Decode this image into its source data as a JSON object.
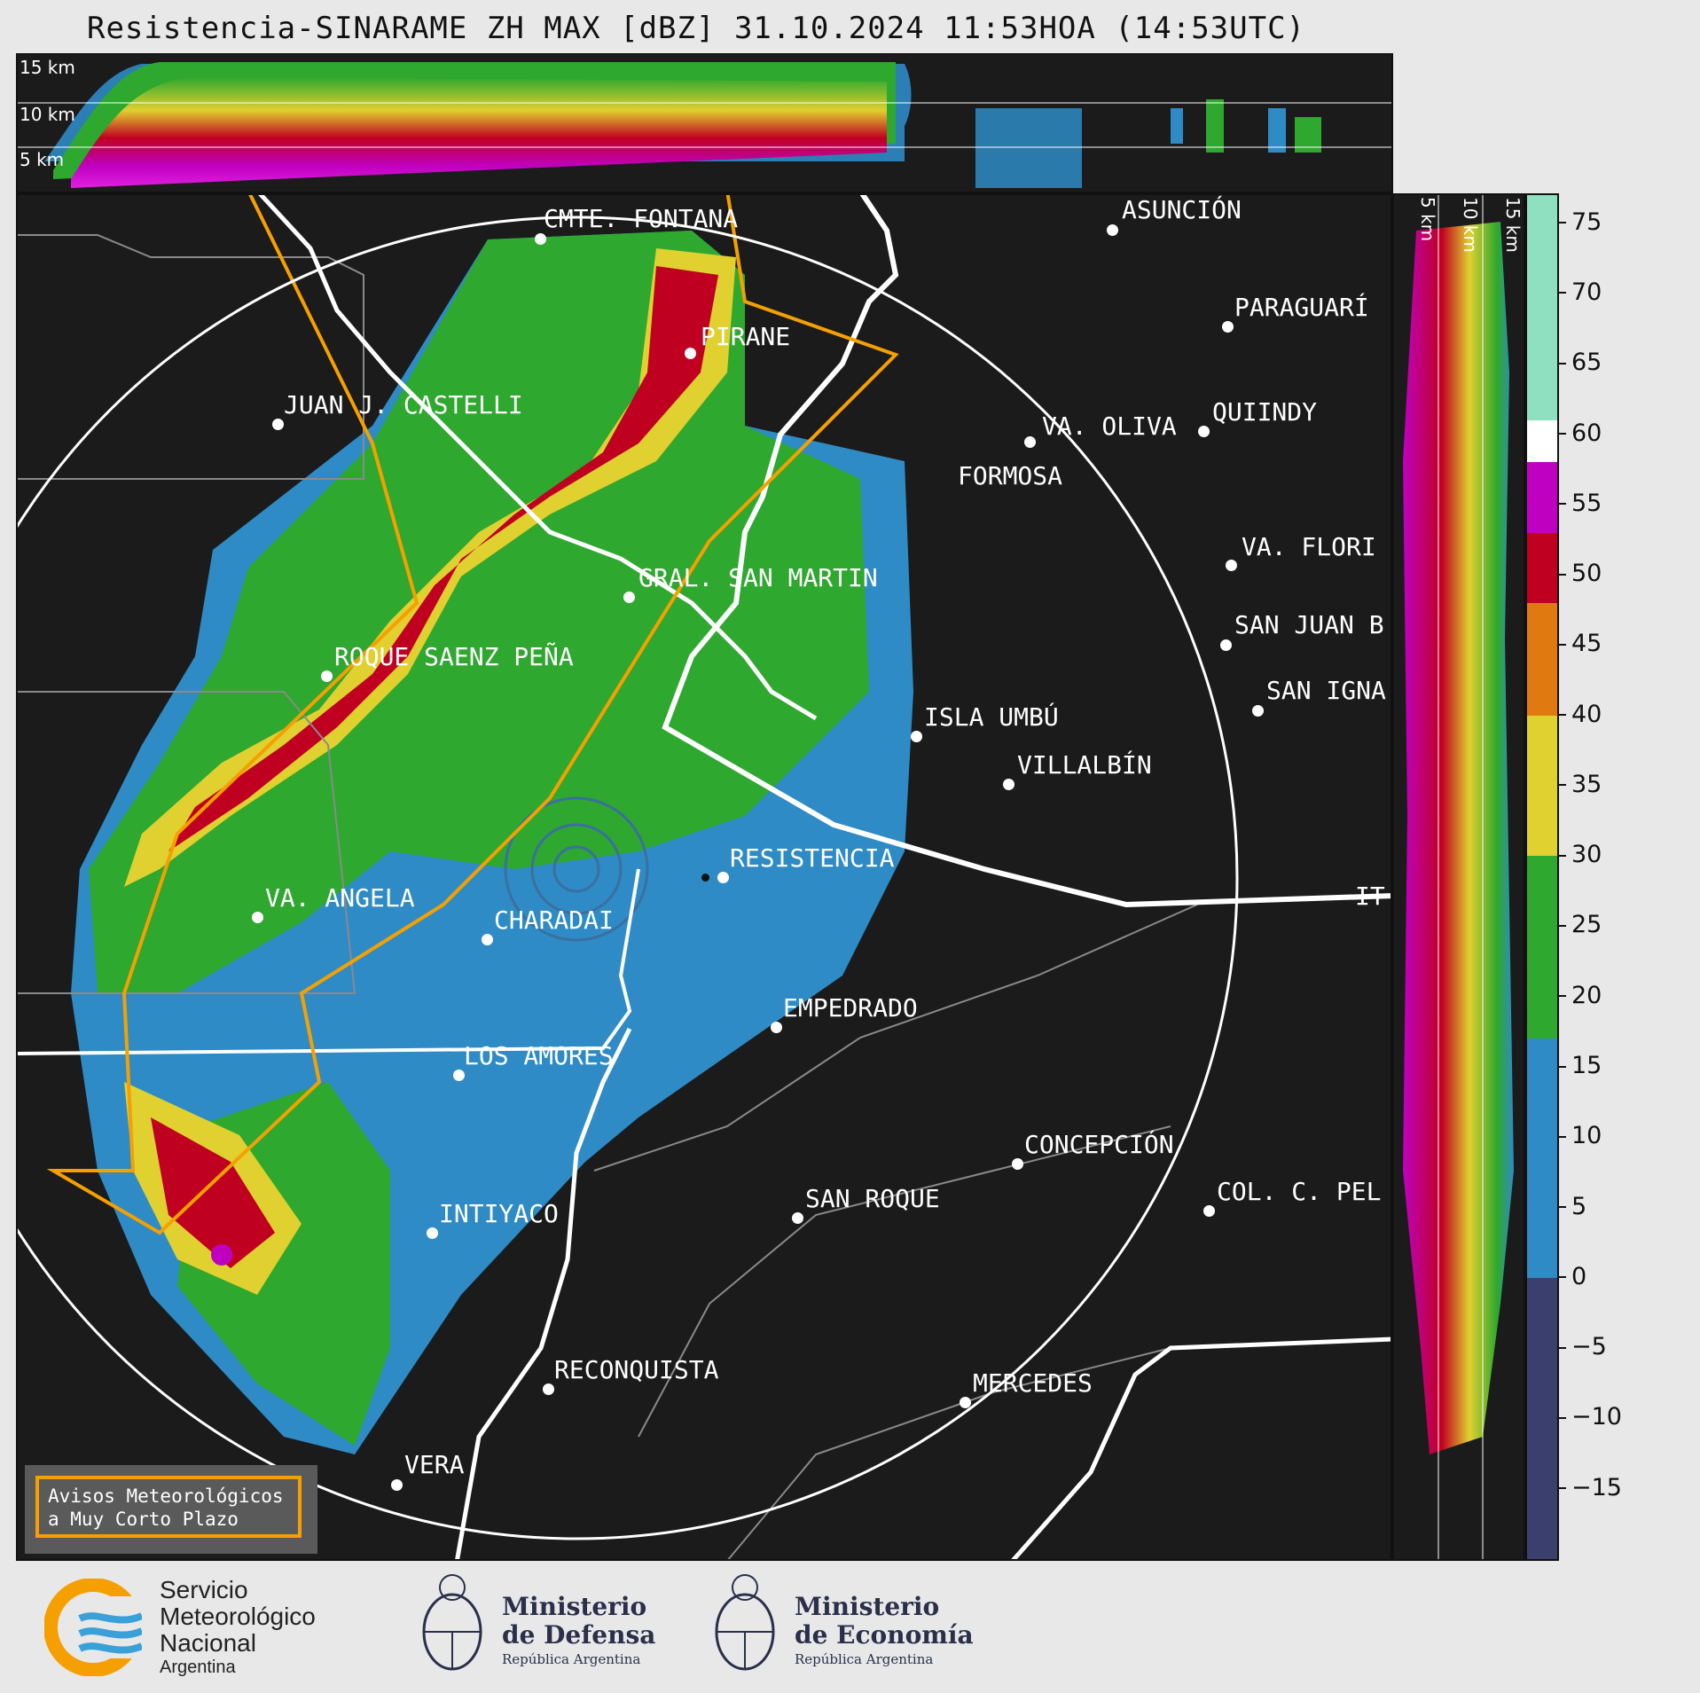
{
  "title": "Resistencia-SINARAME ZH MAX [dBZ] 31.10.2024 11:53HOA (14:53UTC)",
  "top_panel": {
    "height_labels": [
      "15 km",
      "10 km",
      "5 km"
    ]
  },
  "right_panel": {
    "height_labels": [
      "5 km",
      "10 km",
      "15 km"
    ]
  },
  "colorbar": {
    "unit": "dBZ",
    "ticks": [
      "75",
      "70",
      "65",
      "60",
      "55",
      "50",
      "45",
      "40",
      "35",
      "30",
      "25",
      "20",
      "15",
      "10",
      "5",
      "0",
      "−5",
      "−10",
      "−15"
    ],
    "range": [
      -20,
      77
    ],
    "colors": [
      {
        "from": -20,
        "to": 0,
        "color": "#3a3f6e"
      },
      {
        "from": 0,
        "to": 17,
        "color": "#2e8bc5"
      },
      {
        "from": 17,
        "to": 30,
        "color": "#2ea82e"
      },
      {
        "from": 30,
        "to": 40,
        "color": "#e0d030"
      },
      {
        "from": 40,
        "to": 48,
        "color": "#e07a10"
      },
      {
        "from": 48,
        "to": 53,
        "color": "#c00020"
      },
      {
        "from": 53,
        "to": 58,
        "color": "#c000c0"
      },
      {
        "from": 58,
        "to": 61,
        "color": "#ffffff"
      },
      {
        "from": 61,
        "to": 77,
        "color": "#8ee0c0"
      }
    ]
  },
  "cities": [
    {
      "name": "CMTE. FONTANA"
    },
    {
      "name": "ASUNCIÓN"
    },
    {
      "name": "PARAGUARÍ"
    },
    {
      "name": "PIRANE"
    },
    {
      "name": "JUAN J. CASTELLI"
    },
    {
      "name": "VA. OLIVA"
    },
    {
      "name": "QUIINDY"
    },
    {
      "name": "FORMOSA"
    },
    {
      "name": "VA. FLORI"
    },
    {
      "name": "GRAL. SAN MARTIN"
    },
    {
      "name": "SAN JUAN B"
    },
    {
      "name": "ROQUE SAENZ PEÑA"
    },
    {
      "name": "SAN IGNA"
    },
    {
      "name": "ISLA UMBÚ"
    },
    {
      "name": "VILLALBÍN"
    },
    {
      "name": "RESISTENCIA"
    },
    {
      "name": "VA. ANGELA"
    },
    {
      "name": "CHARADAI"
    },
    {
      "name": "IT"
    },
    {
      "name": "EMPEDRADO"
    },
    {
      "name": "LOS AMORES"
    },
    {
      "name": "CONCEPCIÓN"
    },
    {
      "name": "SAN ROQUE"
    },
    {
      "name": "COL. C. PEL"
    },
    {
      "name": "INTIYACO"
    },
    {
      "name": "RECONQUISTA"
    },
    {
      "name": "MERCEDES"
    },
    {
      "name": "VERA"
    }
  ],
  "legend": {
    "line1": "Avisos Meteorológicos",
    "line2": "a Muy Corto Plazo"
  },
  "footer": {
    "smn": {
      "l1": "Servicio",
      "l2": "Meteorológico",
      "l3": "Nacional",
      "l4": "Argentina"
    },
    "defensa": {
      "l1": "Ministerio",
      "l2": "de Defensa",
      "l3": "República Argentina"
    },
    "economia": {
      "l1": "Ministerio",
      "l2": "de Economía",
      "l3": "República Argentina"
    }
  }
}
